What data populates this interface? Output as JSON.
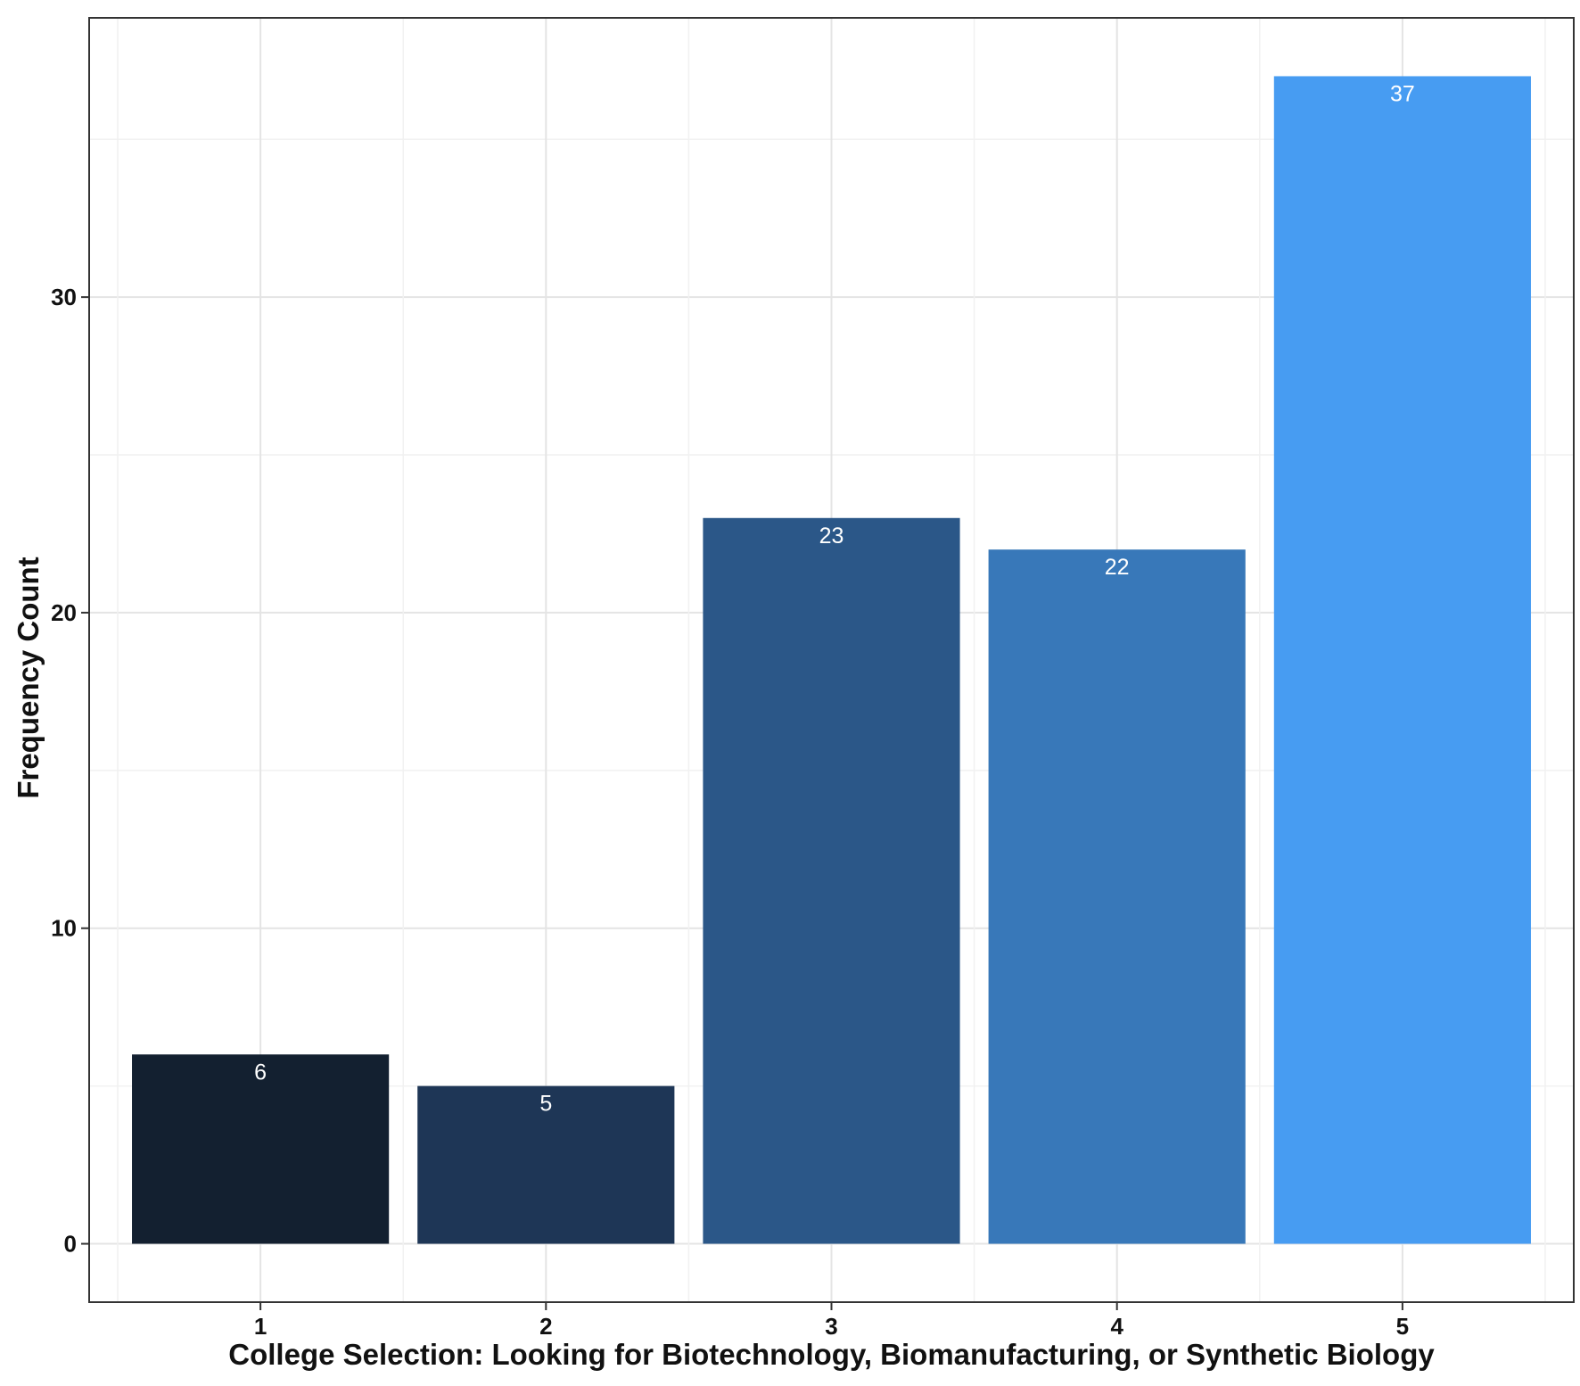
{
  "chart_data": {
    "type": "bar",
    "title": "",
    "xlabel": "College Selection: Looking for Biotechnology, Biomanufacturing, or Synthetic Biology",
    "ylabel": "Frequency Count",
    "categories": [
      "1",
      "2",
      "3",
      "4",
      "5"
    ],
    "values": [
      6,
      5,
      23,
      22,
      37
    ],
    "data_labels": [
      "6",
      "5",
      "23",
      "22",
      "37"
    ],
    "bar_colors": [
      "#132030",
      "#1e3656",
      "#2b5788",
      "#3878b9",
      "#479cf2"
    ],
    "ylim": [
      -1.85,
      38.85
    ],
    "yticks": [
      0,
      10,
      20,
      30
    ],
    "ytick_labels": [
      "0",
      "10",
      "20",
      "30"
    ],
    "grid": true,
    "legend": "none"
  }
}
